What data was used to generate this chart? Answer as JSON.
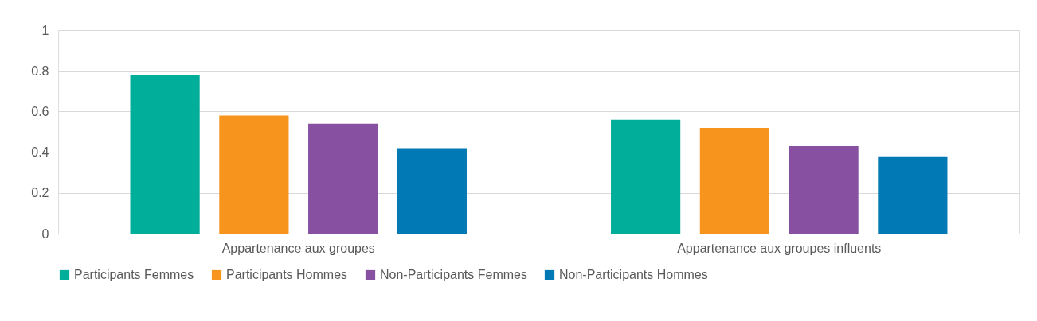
{
  "chart_data": {
    "type": "bar",
    "categories": [
      "Appartenance aux groupes",
      "Appartenance aux groupes influents"
    ],
    "series": [
      {
        "name": "Participants Femmes",
        "color": "#00ae9a",
        "values": [
          0.78,
          0.56
        ]
      },
      {
        "name": "Participants Hommes",
        "color": "#f7941d",
        "values": [
          0.58,
          0.52
        ]
      },
      {
        "name": "Non-Participants Femmes",
        "color": "#8750a0",
        "values": [
          0.54,
          0.43
        ]
      },
      {
        "name": "Non-Participants Hommes",
        "color": "#0079b5",
        "values": [
          0.42,
          0.38
        ]
      }
    ],
    "ylim": [
      0,
      1
    ],
    "yticks": [
      0,
      0.2,
      0.4,
      0.6,
      0.8,
      1
    ],
    "grid": "y",
    "legend": "bottom"
  }
}
